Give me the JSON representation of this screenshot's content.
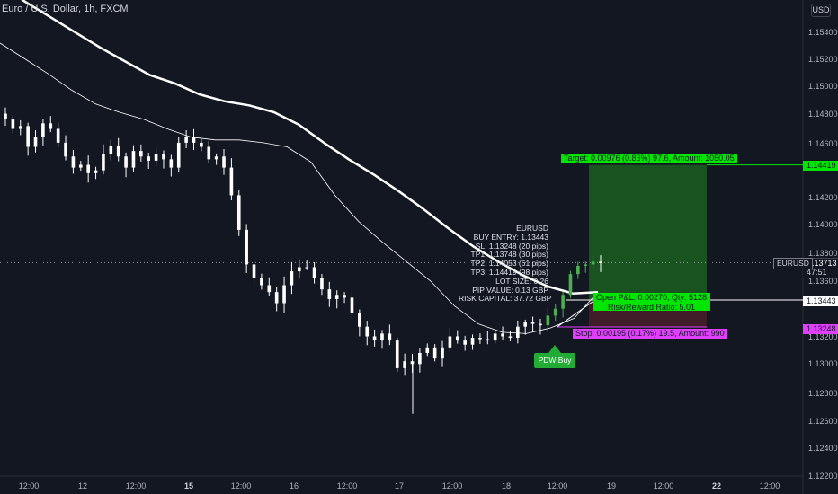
{
  "header": {
    "symbol_title": "Euro / U.S. Dollar, 1h, FXCM",
    "currency_button": "USD"
  },
  "y_axis_labels": [
    "1.15400",
    "1.15200",
    "1.15000",
    "1.14800",
    "1.14600",
    "1.14200",
    "1.14000",
    "1.13800",
    "1.13600",
    "1.13200",
    "1.13000",
    "1.12800",
    "1.12600",
    "1.12400",
    "1.12200"
  ],
  "x_axis_labels": [
    {
      "text": "12:00",
      "bold": false
    },
    {
      "text": "12",
      "bold": false
    },
    {
      "text": "12:00",
      "bold": false
    },
    {
      "text": "15",
      "bold": true
    },
    {
      "text": "12:00",
      "bold": false
    },
    {
      "text": "16",
      "bold": false
    },
    {
      "text": "12:00",
      "bold": false
    },
    {
      "text": "17",
      "bold": false
    },
    {
      "text": "12:00",
      "bold": false
    },
    {
      "text": "18",
      "bold": false
    },
    {
      "text": "12:00",
      "bold": false
    },
    {
      "text": "19",
      "bold": false
    },
    {
      "text": "12:00",
      "bold": false
    },
    {
      "text": "22",
      "bold": true
    },
    {
      "text": "12:00",
      "bold": false
    }
  ],
  "price_labels": {
    "target": "1.14419",
    "current": "1.13713",
    "countdown": "47:51",
    "entry": "1.13443",
    "stop": "1.13248",
    "symbol_tag": "EURUSD"
  },
  "position_tool": {
    "target_text": "Target: 0.00976 (0.86%) 97.6, Amount: 1050.05",
    "open_pnl_text": "Open P&L: 0.00270, Qty: 5128",
    "risk_reward_text": "Risk/Reward Ratio: 5.01",
    "stop_text": "Stop: 0.00195 (0.17%) 19.5, Amount: 990"
  },
  "info_box": {
    "lines": [
      "EURUSD",
      "BUY ENTRY: 1.13443",
      "SL: 1.13248 (20 pips)",
      "TP1: 1.13748 (30 pips)",
      "TP2: 1.14053 (61 pips)",
      "TP3: 1.14419 (98 pips)",
      "LOT SIZE: 0.26",
      "PIP VALUE: 0.13 GBP",
      "RISK CAPITAL: 37.72 GBP"
    ]
  },
  "signal_label": "PDW Buy",
  "colors": {
    "background": "#131722",
    "candle": "#ffffff",
    "target_zone": "#1b5e20",
    "stop_zone": "#4a1f2a",
    "target_label": "#00e600",
    "stop_label": "#e040fb",
    "signal": "#22ab35"
  },
  "chart_data": {
    "type": "candlestick",
    "ylim": [
      1.122,
      1.156
    ],
    "close_path": [
      1.1475,
      1.1468,
      1.147,
      1.1455,
      1.1462,
      1.1472,
      1.1468,
      1.1458,
      1.1448,
      1.144,
      1.1442,
      1.1436,
      1.1438,
      1.145,
      1.1456,
      1.1448,
      1.144,
      1.1452,
      1.1448,
      1.1445,
      1.145,
      1.1446,
      1.144,
      1.1458,
      1.1462,
      1.1458,
      1.1455,
      1.1446,
      1.1448,
      1.144,
      1.142,
      1.1395,
      1.137,
      1.136,
      1.1355,
      1.135,
      1.1342,
      1.1355,
      1.1365,
      1.1368,
      1.1368,
      1.136,
      1.1352,
      1.1345,
      1.1348,
      1.1346,
      1.1335,
      1.1325,
      1.1318,
      1.1315,
      1.132,
      1.1315,
      1.1295,
      1.13,
      1.1298,
      1.1306,
      1.131,
      1.1302,
      1.131,
      1.1318,
      1.1315,
      1.1312,
      1.1317,
      1.1316,
      1.1315,
      1.132,
      1.1318,
      1.1317,
      1.1325,
      1.1328,
      1.1327,
      1.1326,
      1.1333,
      1.1338,
      1.1348,
      1.1363,
      1.1369,
      1.137,
      1.1372,
      1.1371
    ],
    "moving_average_fast": [
      1.153,
      1.1519,
      1.1508,
      1.1496,
      1.1486,
      1.148,
      1.1475,
      1.1468,
      1.1462,
      1.146,
      1.146,
      1.1458,
      1.1455,
      1.1444,
      1.142,
      1.1401,
      1.1386,
      1.1372,
      1.1358,
      1.134,
      1.1327,
      1.1321,
      1.132,
      1.1324,
      1.1331,
      1.135
    ],
    "moving_average_slow": [
      1.1573,
      1.156,
      1.1549,
      1.1538,
      1.1527,
      1.1517,
      1.1507,
      1.1501,
      1.1493,
      1.1488,
      1.1485,
      1.148,
      1.1471,
      1.1458,
      1.1446,
      1.1435,
      1.1423,
      1.141,
      1.1396,
      1.1383,
      1.1372,
      1.1362,
      1.1354,
      1.1349,
      1.135
    ]
  }
}
